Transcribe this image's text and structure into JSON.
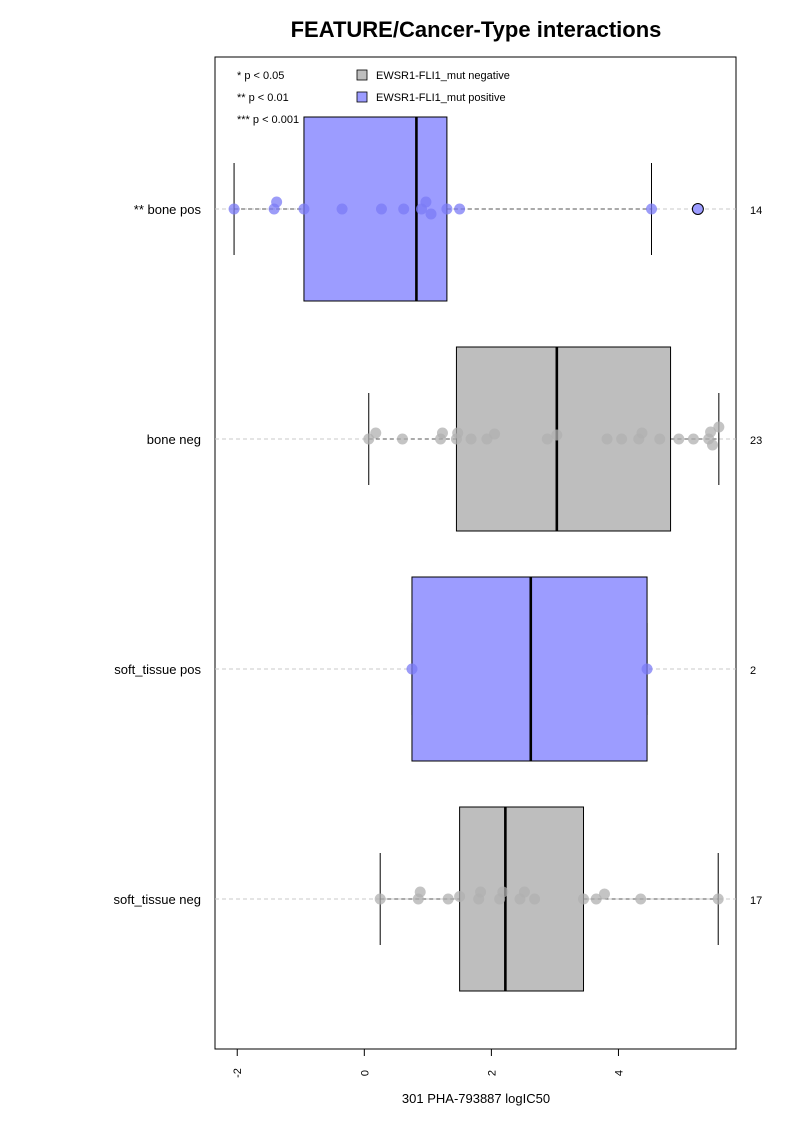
{
  "chart_data": {
    "type": "boxplot",
    "title": "FEATURE/Cancer-Type interactions",
    "xlabel": "301 PHA-793887 logIC50",
    "xlim": [
      -2.35,
      5.85
    ],
    "x_ticks": [
      -2,
      0,
      2,
      4
    ],
    "x_tick_labels": [
      "-2",
      "0",
      "2",
      "4"
    ],
    "significance_legend": [
      "* p < 0.05",
      "** p < 0.01",
      "*** p < 0.001"
    ],
    "legend": [
      {
        "label": "EWSR1-FLI1_mut negative",
        "color": "#bebebe"
      },
      {
        "label": "EWSR1-FLI1_mut positive",
        "color": "#9c9cff"
      }
    ],
    "colors": {
      "negative": "#bebebe",
      "positive": "#9c9cff",
      "negative_points": "#b0b0b0",
      "positive_points": "#7b7bf5"
    },
    "groups": [
      {
        "label": "** bone pos",
        "count": "14",
        "status": "positive",
        "whisker_low": -2.05,
        "q1": -0.95,
        "median": 0.82,
        "q3": 1.3,
        "whisker_high": 4.52,
        "outliers": [
          5.25
        ],
        "points": [
          {
            "x": -2.05,
            "o": 0
          },
          {
            "x": -1.42,
            "o": 0
          },
          {
            "x": -1.38,
            "o": 0.7
          },
          {
            "x": -0.95,
            "o": 0
          },
          {
            "x": -0.35,
            "o": 0
          },
          {
            "x": 0.27,
            "o": 0
          },
          {
            "x": 0.62,
            "o": 0
          },
          {
            "x": 0.9,
            "o": 0
          },
          {
            "x": 0.97,
            "o": 0.7
          },
          {
            "x": 1.05,
            "o": -0.5
          },
          {
            "x": 1.3,
            "o": 0
          },
          {
            "x": 1.5,
            "o": 0
          },
          {
            "x": 4.52,
            "o": 0
          },
          {
            "x": 5.25,
            "o": 0
          }
        ]
      },
      {
        "label": "bone neg",
        "count": "23",
        "status": "negative",
        "whisker_low": 0.07,
        "q1": 1.45,
        "median": 3.03,
        "q3": 4.82,
        "whisker_high": 5.58,
        "outliers": [],
        "points": [
          {
            "x": 0.07,
            "o": 0
          },
          {
            "x": 0.18,
            "o": 0.6
          },
          {
            "x": 0.6,
            "o": 0
          },
          {
            "x": 1.2,
            "o": 0
          },
          {
            "x": 1.23,
            "o": 0.6
          },
          {
            "x": 1.45,
            "o": 0
          },
          {
            "x": 1.47,
            "o": 0.6
          },
          {
            "x": 1.68,
            "o": 0
          },
          {
            "x": 1.93,
            "o": 0
          },
          {
            "x": 2.05,
            "o": 0.5
          },
          {
            "x": 2.88,
            "o": 0
          },
          {
            "x": 3.03,
            "o": 0.4
          },
          {
            "x": 3.82,
            "o": 0
          },
          {
            "x": 4.05,
            "o": 0
          },
          {
            "x": 4.32,
            "o": 0
          },
          {
            "x": 4.37,
            "o": 0.6
          },
          {
            "x": 4.65,
            "o": 0
          },
          {
            "x": 4.95,
            "o": 0
          },
          {
            "x": 5.18,
            "o": 0
          },
          {
            "x": 5.42,
            "o": 0
          },
          {
            "x": 5.45,
            "o": 0.7
          },
          {
            "x": 5.48,
            "o": -0.6
          },
          {
            "x": 5.58,
            "o": 1.2
          }
        ]
      },
      {
        "label": "soft_tissue pos",
        "count": "2",
        "status": "positive",
        "whisker_low": 0.75,
        "q1": 0.75,
        "median": 2.62,
        "q3": 4.45,
        "whisker_high": 4.45,
        "outliers": [],
        "points": [
          {
            "x": 0.75,
            "o": 0
          },
          {
            "x": 4.45,
            "o": 0
          }
        ]
      },
      {
        "label": "soft_tissue neg",
        "count": "17",
        "status": "negative",
        "whisker_low": 0.25,
        "q1": 1.5,
        "median": 2.22,
        "q3": 3.45,
        "whisker_high": 5.57,
        "outliers": [],
        "points": [
          {
            "x": 0.25,
            "o": 0
          },
          {
            "x": 0.85,
            "o": 0
          },
          {
            "x": 0.88,
            "o": 0.7
          },
          {
            "x": 1.32,
            "o": 0
          },
          {
            "x": 1.5,
            "o": 0.25
          },
          {
            "x": 1.8,
            "o": 0
          },
          {
            "x": 1.83,
            "o": 0.7
          },
          {
            "x": 2.13,
            "o": 0
          },
          {
            "x": 2.18,
            "o": 0.7
          },
          {
            "x": 2.45,
            "o": 0
          },
          {
            "x": 2.52,
            "o": 0.7
          },
          {
            "x": 2.68,
            "o": 0
          },
          {
            "x": 3.45,
            "o": 0
          },
          {
            "x": 3.65,
            "o": 0
          },
          {
            "x": 3.78,
            "o": 0.5
          },
          {
            "x": 4.35,
            "o": 0
          },
          {
            "x": 5.57,
            "o": 0
          }
        ]
      }
    ]
  }
}
